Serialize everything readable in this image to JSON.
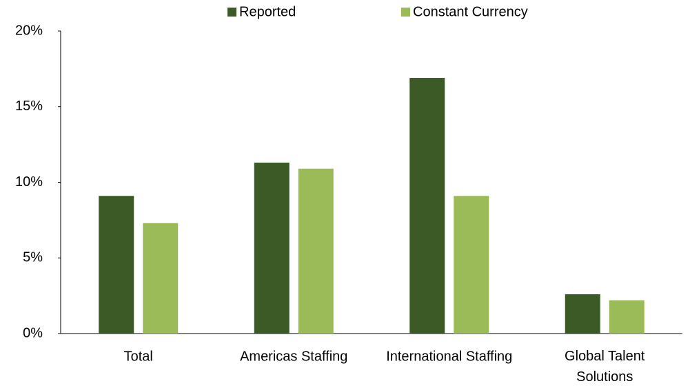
{
  "chart_data": {
    "type": "bar",
    "categories": [
      "Total",
      "Americas Staffing",
      "International Staffing",
      "Global Talent Solutions"
    ],
    "series": [
      {
        "name": "Reported",
        "color": "#3b5a26",
        "values": [
          9.1,
          11.3,
          16.9,
          2.6
        ]
      },
      {
        "name": "Constant Currency",
        "color": "#9bbb59",
        "values": [
          7.3,
          10.9,
          9.1,
          2.2
        ]
      }
    ],
    "ylim": [
      0,
      20
    ],
    "yticks": [
      {
        "value": 0,
        "label": "0%"
      },
      {
        "value": 5,
        "label": "5%"
      },
      {
        "value": 10,
        "label": "10%"
      },
      {
        "value": 15,
        "label": "15%"
      },
      {
        "value": 20,
        "label": "20%"
      }
    ],
    "grid": false,
    "legend": "top"
  }
}
